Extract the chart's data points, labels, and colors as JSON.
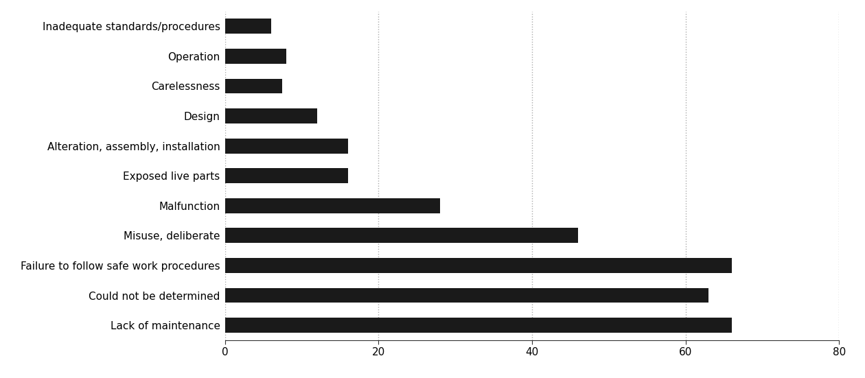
{
  "categories": [
    "Inadequate standards/procedures",
    "Operation",
    "Carelessness",
    "Design",
    "Alteration, assembly, installation",
    "Exposed live parts",
    "Malfunction",
    "Misuse, deliberate",
    "Failure to follow safe work procedures",
    "Could not be determined",
    "Lack of maintenance"
  ],
  "values": [
    6,
    8,
    7.5,
    12,
    16,
    16,
    28,
    46,
    66,
    63,
    66
  ],
  "bar_color": "#1a1a1a",
  "background_color": "#ffffff",
  "xlim": [
    0,
    80
  ],
  "xticks": [
    0,
    20,
    40,
    60,
    80
  ],
  "grid_color": "#aaaaaa",
  "bar_height": 0.5,
  "label_fontsize": 11,
  "tick_fontsize": 11
}
